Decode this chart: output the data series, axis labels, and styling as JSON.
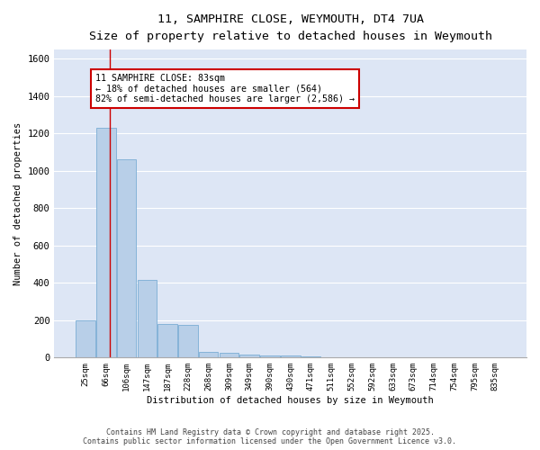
{
  "title1": "11, SAMPHIRE CLOSE, WEYMOUTH, DT4 7UA",
  "title2": "Size of property relative to detached houses in Weymouth",
  "xlabel": "Distribution of detached houses by size in Weymouth",
  "ylabel": "Number of detached properties",
  "categories": [
    "25sqm",
    "66sqm",
    "106sqm",
    "147sqm",
    "187sqm",
    "228sqm",
    "268sqm",
    "309sqm",
    "349sqm",
    "390sqm",
    "430sqm",
    "471sqm",
    "511sqm",
    "552sqm",
    "592sqm",
    "633sqm",
    "673sqm",
    "714sqm",
    "754sqm",
    "795sqm",
    "835sqm"
  ],
  "values": [
    200,
    1230,
    1060,
    415,
    180,
    175,
    30,
    25,
    15,
    10,
    10,
    5,
    0,
    0,
    0,
    0,
    0,
    0,
    0,
    0,
    0
  ],
  "bar_color": "#b8cfe8",
  "bar_edge_color": "#7aadd4",
  "bg_color": "#dde6f5",
  "grid_color": "#ffffff",
  "red_line_x": 1.18,
  "annotation_line1": "11 SAMPHIRE CLOSE: 83sqm",
  "annotation_line2": "← 18% of detached houses are smaller (564)",
  "annotation_line3": "82% of semi-detached houses are larger (2,586) →",
  "annotation_box_color": "#ffffff",
  "annotation_box_edge": "#cc0000",
  "ylim": [
    0,
    1650
  ],
  "yticks": [
    0,
    200,
    400,
    600,
    800,
    1000,
    1200,
    1400,
    1600
  ],
  "footer1": "Contains HM Land Registry data © Crown copyright and database right 2025.",
  "footer2": "Contains public sector information licensed under the Open Government Licence v3.0."
}
